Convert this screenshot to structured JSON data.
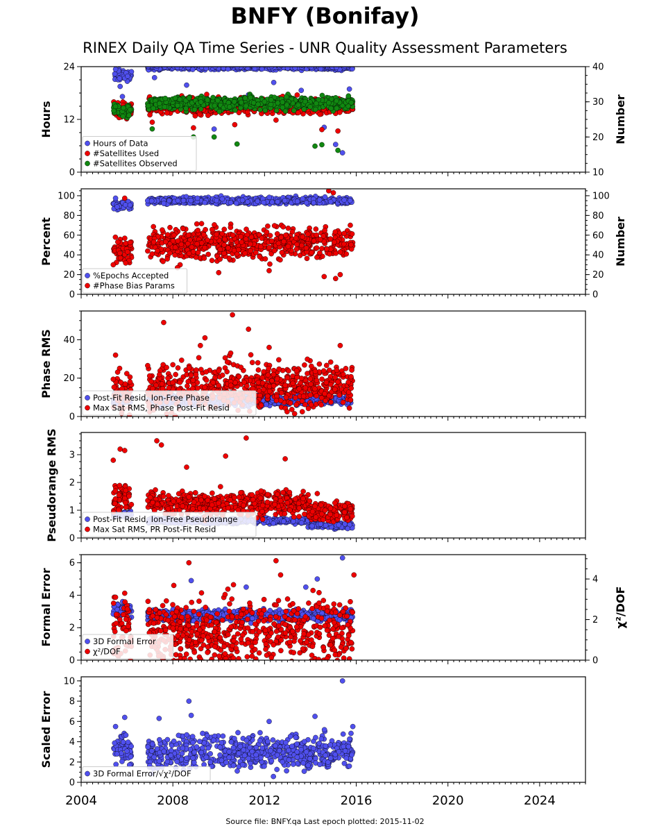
{
  "title": "BNFY (Bonifay)",
  "subtitle": "RINEX Daily QA Time Series - UNR Quality Assessment Parameters",
  "footer": "Source file: BNFY.qa Last epoch plotted: 2015-11-02",
  "colors": {
    "blue": "#5050ee",
    "red": "#ee0000",
    "green": "#118811"
  },
  "chart_data": [
    {
      "type": "scatter",
      "panel": "hours-number",
      "ylabel": "Hours",
      "y2label": "Number",
      "xlim": [
        2004,
        2026
      ],
      "ylim": [
        0,
        24
      ],
      "y2lim": [
        10,
        40
      ],
      "xticks": [
        "2004",
        "2008",
        "2012",
        "2016",
        "2020",
        "2024"
      ],
      "yticks": [
        0,
        12,
        24
      ],
      "y2ticks": [
        10,
        20,
        30,
        40
      ],
      "legend": "bottom-left",
      "series": [
        {
          "name": "Hours of Data",
          "color": "blue",
          "axis": "left",
          "segments": [
            {
              "x0": 2005.4,
              "x1": 2006.2,
              "base": 22.0,
              "spread": 0.6,
              "outliers": [
                [
                  2005.5,
                  23.4
                ],
                [
                  2005.7,
                  19.5
                ],
                [
                  2005.8,
                  17.2
                ],
                [
                  2005.9,
                  14.6
                ]
              ]
            },
            {
              "x0": 2006.9,
              "x1": 2015.85,
              "base": 23.9,
              "spread": 0.3,
              "outliers": [
                [
                  2007.2,
                  21.5
                ],
                [
                  2008.6,
                  19.8
                ],
                [
                  2009.8,
                  9.8
                ],
                [
                  2011.3,
                  17.6
                ],
                [
                  2012.4,
                  20.4
                ],
                [
                  2013.6,
                  18.6
                ],
                [
                  2014.6,
                  10.2
                ],
                [
                  2015.1,
                  6.3
                ],
                [
                  2015.4,
                  4.4
                ],
                [
                  2015.7,
                  18.9
                ]
              ]
            }
          ]
        },
        {
          "name": "#Satellites Used",
          "color": "red",
          "axis": "right",
          "segments": [
            {
              "x0": 2005.4,
              "x1": 2006.2,
              "base": 27.5,
              "spread": 1.0,
              "outliers": []
            },
            {
              "x0": 2006.9,
              "x1": 2015.85,
              "base": 28.9,
              "spread": 1.1,
              "outliers": [
                [
                  2007.1,
                  24.2
                ],
                [
                  2008.9,
                  22.6
                ],
                [
                  2010.7,
                  23.5
                ],
                [
                  2012.5,
                  24.8
                ],
                [
                  2014.5,
                  22.1
                ],
                [
                  2015.2,
                  21.7
                ]
              ]
            }
          ]
        },
        {
          "name": "#Satellites Observed",
          "color": "green",
          "axis": "right",
          "segments": [
            {
              "x0": 2005.4,
              "x1": 2006.2,
              "base": 27.6,
              "spread": 0.9,
              "outliers": []
            },
            {
              "x0": 2006.9,
              "x1": 2015.85,
              "base": 29.6,
              "spread": 0.9,
              "outliers": [
                [
                  2007.1,
                  22.3
                ],
                [
                  2008.9,
                  20.0
                ],
                [
                  2009.8,
                  20.0
                ],
                [
                  2010.8,
                  18.0
                ],
                [
                  2014.2,
                  17.4
                ],
                [
                  2014.5,
                  17.8
                ],
                [
                  2015.2,
                  16.2
                ]
              ]
            }
          ]
        }
      ]
    },
    {
      "type": "scatter",
      "panel": "percent-number",
      "ylabel": "Percent",
      "y2label": "Number",
      "xlim": [
        2004,
        2026
      ],
      "ylim": [
        0,
        107
      ],
      "y2lim": [
        0,
        107
      ],
      "yticks": [
        0,
        20,
        40,
        60,
        80,
        100
      ],
      "y2ticks": [
        0,
        20,
        40,
        60,
        80,
        100
      ],
      "legend": "bottom-left",
      "series": [
        {
          "name": "%Epochs Accepted",
          "color": "blue",
          "axis": "left",
          "segments": [
            {
              "x0": 2005.4,
              "x1": 2006.2,
              "base": 90.0,
              "spread": 2.0,
              "outliers": [
                [
                  2005.5,
                  97.5
                ]
              ]
            },
            {
              "x0": 2006.9,
              "x1": 2015.85,
              "base": 95.0,
              "spread": 1.6,
              "outliers": []
            }
          ]
        },
        {
          "name": "#Phase Bias Params",
          "color": "red",
          "axis": "right",
          "segments": [
            {
              "x0": 2005.4,
              "x1": 2006.2,
              "base": 46.0,
              "spread": 6.0,
              "outliers": [
                [
                  2005.4,
                  30.0
                ],
                [
                  2005.9,
                  97.5
                ]
              ]
            },
            {
              "x0": 2006.9,
              "x1": 2015.85,
              "base": 52.0,
              "spread": 8.0,
              "outliers": [
                [
                  2008.2,
                  27.0
                ],
                [
                  2010.0,
                  22.0
                ],
                [
                  2012.2,
                  24.0
                ],
                [
                  2014.6,
                  18.0
                ],
                [
                  2015.1,
                  16.0
                ],
                [
                  2015.3,
                  20.0
                ],
                [
                  2014.8,
                  105.0
                ],
                [
                  2015.0,
                  103.0
                ]
              ]
            }
          ]
        }
      ]
    },
    {
      "type": "scatter",
      "panel": "phase-rms",
      "ylabel": "Phase RMS",
      "xlim": [
        2004,
        2026
      ],
      "ylim": [
        0,
        55
      ],
      "yticks": [
        0,
        20,
        40
      ],
      "legend": "bottom-left",
      "series": [
        {
          "name": "Post-Fit Resid, Ion-Free Phase",
          "color": "blue",
          "axis": "left",
          "segments": [
            {
              "x0": 2005.4,
              "x1": 2006.2,
              "base": 8.5,
              "spread": 1.2,
              "outliers": []
            },
            {
              "x0": 2006.9,
              "x1": 2015.85,
              "base": 8.5,
              "spread": 1.4,
              "outliers": []
            }
          ]
        },
        {
          "name": "Max Sat RMS, Phase Post-Fit Resid",
          "color": "red",
          "axis": "left",
          "segments": [
            {
              "x0": 2005.4,
              "x1": 2006.2,
              "base": 14.0,
              "spread": 5.5,
              "outliers": [
                [
                  2005.5,
                  32.0
                ]
              ]
            },
            {
              "x0": 2006.9,
              "x1": 2015.85,
              "base": 16.0,
              "spread": 6.0,
              "outliers": [
                [
                  2007.6,
                  49.0
                ],
                [
                  2010.6,
                  53.0
                ],
                [
                  2011.3,
                  45.5
                ],
                [
                  2009.4,
                  41.0
                ],
                [
                  2009.2,
                  37.0
                ],
                [
                  2015.3,
                  37.0
                ],
                [
                  2012.2,
                  36.0
                ]
              ]
            }
          ]
        }
      ]
    },
    {
      "type": "scatter",
      "panel": "pseudorange-rms",
      "ylabel": "Pseudorange RMS",
      "xlim": [
        2004,
        2026
      ],
      "ylim": [
        0,
        3.8
      ],
      "yticks": [
        0,
        1,
        2,
        3
      ],
      "legend": "bottom-left",
      "series": [
        {
          "name": "Post-Fit Resid, Ion-Free Pseudorange",
          "color": "blue",
          "axis": "left",
          "segments": [
            {
              "x0": 2005.4,
              "x1": 2006.2,
              "base": 0.85,
              "spread": 0.06,
              "outliers": []
            },
            {
              "x0": 2006.9,
              "x1": 2013.9,
              "base": 0.62,
              "spread": 0.05,
              "outliers": []
            },
            {
              "x0": 2013.9,
              "x1": 2015.85,
              "base": 0.45,
              "spread": 0.05,
              "outliers": []
            }
          ]
        },
        {
          "name": "Max Sat RMS, PR Post-Fit Resid",
          "color": "red",
          "axis": "left",
          "segments": [
            {
              "x0": 2005.4,
              "x1": 2006.2,
              "base": 1.45,
              "spread": 0.22,
              "outliers": [
                [
                  2005.4,
                  2.8
                ],
                [
                  2005.7,
                  3.2
                ],
                [
                  2005.9,
                  3.15
                ]
              ]
            },
            {
              "x0": 2006.9,
              "x1": 2013.9,
              "base": 1.25,
              "spread": 0.22,
              "outliers": [
                [
                  2007.3,
                  3.5
                ],
                [
                  2007.5,
                  3.35
                ],
                [
                  2011.2,
                  3.6
                ],
                [
                  2012.9,
                  2.85
                ],
                [
                  2010.3,
                  2.95
                ],
                [
                  2008.6,
                  2.55
                ]
              ]
            },
            {
              "x0": 2013.9,
              "x1": 2015.85,
              "base": 0.95,
              "spread": 0.18,
              "outliers": [
                [
                  2014.3,
                  1.6
                ]
              ]
            }
          ]
        }
      ]
    },
    {
      "type": "scatter",
      "panel": "formal-error",
      "ylabel": "Formal Error",
      "y2label": "χ²/DOF",
      "xlim": [
        2004,
        2026
      ],
      "ylim": [
        0,
        6.5
      ],
      "y2lim": [
        0,
        5.2
      ],
      "yticks": [
        0,
        2,
        4,
        6
      ],
      "y2ticks": [
        0,
        2,
        4
      ],
      "legend": "bottom-left",
      "series": [
        {
          "name": "3D Formal Error",
          "color": "blue",
          "axis": "left",
          "segments": [
            {
              "x0": 2005.4,
              "x1": 2006.2,
              "base": 3.1,
              "spread": 0.25,
              "outliers": []
            },
            {
              "x0": 2006.9,
              "x1": 2015.85,
              "base": 2.75,
              "spread": 0.18,
              "outliers": [
                [
                  2008.8,
                  4.9
                ],
                [
                  2015.4,
                  6.3
                ],
                [
                  2014.3,
                  5.0
                ],
                [
                  2011.2,
                  4.5
                ],
                [
                  2013.8,
                  4.5
                ]
              ]
            }
          ]
        },
        {
          "name": "χ²/DOF",
          "color": "red",
          "axis": "right",
          "segments": [
            {
              "x0": 2005.4,
              "x1": 2006.2,
              "base": 1.3,
              "spread": 0.9,
              "outliers": [
                [
                  2005.9,
                  3.3
                ],
                [
                  2005.5,
                  3.1
                ]
              ]
            },
            {
              "x0": 2006.9,
              "x1": 2015.85,
              "base": 1.3,
              "spread": 0.9,
              "outliers": [
                [
                  2008.7,
                  4.8
                ],
                [
                  2012.5,
                  4.9
                ],
                [
                  2012.7,
                  4.2
                ],
                [
                  2015.9,
                  4.2
                ],
                [
                  2010.4,
                  3.5
                ]
              ]
            }
          ]
        }
      ]
    },
    {
      "type": "scatter",
      "panel": "scaled-error",
      "ylabel": "Scaled Error",
      "xlim": [
        2004,
        2026
      ],
      "ylim": [
        0,
        10.4
      ],
      "yticks": [
        0,
        2,
        4,
        6,
        8,
        10
      ],
      "legend": "bottom-left",
      "series": [
        {
          "name": "3D Formal Error/√χ²/DOF",
          "color": "blue",
          "axis": "left",
          "segments": [
            {
              "x0": 2005.4,
              "x1": 2006.2,
              "base": 3.2,
              "spread": 0.8,
              "outliers": [
                [
                  2005.9,
                  6.4
                ],
                [
                  2005.5,
                  5.5
                ]
              ]
            },
            {
              "x0": 2006.9,
              "x1": 2015.85,
              "base": 3.0,
              "spread": 0.8,
              "outliers": [
                [
                  2008.7,
                  8.0
                ],
                [
                  2008.8,
                  6.6
                ],
                [
                  2015.4,
                  10.0
                ],
                [
                  2014.2,
                  6.5
                ],
                [
                  2007.4,
                  6.3
                ],
                [
                  2012.2,
                  6.0
                ],
                [
                  2015.85,
                  5.5
                ]
              ]
            }
          ]
        }
      ]
    }
  ]
}
